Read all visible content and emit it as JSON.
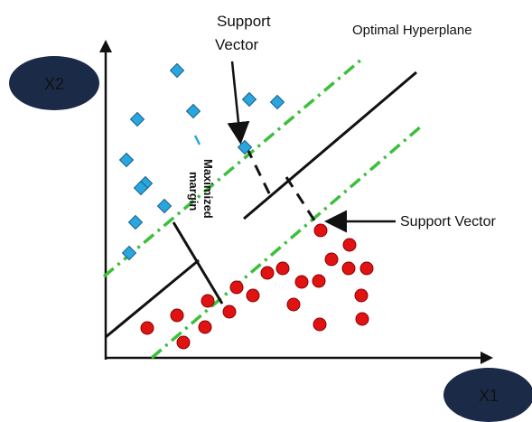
{
  "labels": {
    "x2_axis": "X2",
    "x1_axis": "X1",
    "support_vector_top_line1": "Support",
    "support_vector_top_line2": "Vector",
    "optimal_hyperplane": "Optimal Hyperplane",
    "support_vector_right": "Support Vector",
    "maximized_margin_line1": "Maximized",
    "maximized_margin_line2": "margin"
  },
  "colors": {
    "axis_bubble": "#1b2a47",
    "margin_line": "#3cbf3c",
    "diamond_fill": "#2aa6de",
    "diamond_stroke": "#1a5f8a",
    "circle_fill": "#e01212",
    "circle_stroke": "#8a0000",
    "line": "#111111"
  },
  "legend": "none"
}
